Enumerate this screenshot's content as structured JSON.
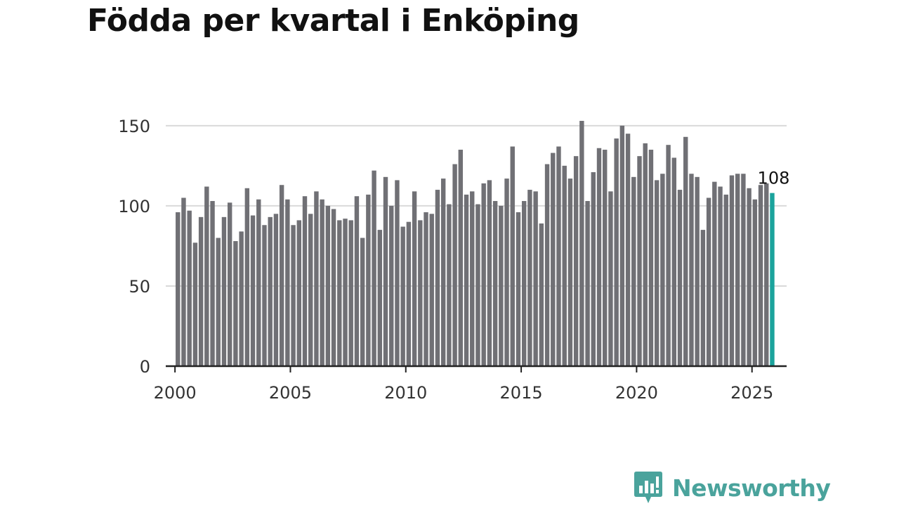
{
  "colors": {
    "bar": "#707075",
    "highlight": "#1ba39c",
    "grid": "#d9d9d9",
    "axis": "#222222",
    "brand": "#4aa39c"
  },
  "brand": {
    "name": "Newsworthy",
    "icon": "newsworthy-logo-icon"
  },
  "chart_data": {
    "type": "bar",
    "title": "Födda per kvartal i Enköping",
    "xlabel": "",
    "ylabel": "",
    "ylim": [
      0,
      160
    ],
    "yticks": [
      0,
      50,
      100,
      150
    ],
    "xlim": [
      1999.6,
      2026.5
    ],
    "xticks": [
      2000,
      2005,
      2010,
      2015,
      2020,
      2025
    ],
    "grid": true,
    "legend": "none",
    "x": [
      2000.125,
      2000.375,
      2000.625,
      2000.875,
      2001.125,
      2001.375,
      2001.625,
      2001.875,
      2002.125,
      2002.375,
      2002.625,
      2002.875,
      2003.125,
      2003.375,
      2003.625,
      2003.875,
      2004.125,
      2004.375,
      2004.625,
      2004.875,
      2005.125,
      2005.375,
      2005.625,
      2005.875,
      2006.125,
      2006.375,
      2006.625,
      2006.875,
      2007.125,
      2007.375,
      2007.625,
      2007.875,
      2008.125,
      2008.375,
      2008.625,
      2008.875,
      2009.125,
      2009.375,
      2009.625,
      2009.875,
      2010.125,
      2010.375,
      2010.625,
      2010.875,
      2011.125,
      2011.375,
      2011.625,
      2011.875,
      2012.125,
      2012.375,
      2012.625,
      2012.875,
      2013.125,
      2013.375,
      2013.625,
      2013.875,
      2014.125,
      2014.375,
      2014.625,
      2014.875,
      2015.125,
      2015.375,
      2015.625,
      2015.875,
      2016.125,
      2016.375,
      2016.625,
      2016.875,
      2017.125,
      2017.375,
      2017.625,
      2017.875,
      2018.125,
      2018.375,
      2018.625,
      2018.875,
      2019.125,
      2019.375,
      2019.625,
      2019.875,
      2020.125,
      2020.375,
      2020.625,
      2020.875,
      2021.125,
      2021.375,
      2021.625,
      2021.875,
      2022.125,
      2022.375,
      2022.625,
      2022.875,
      2023.125,
      2023.375,
      2023.625,
      2023.875,
      2024.125,
      2024.375,
      2024.625,
      2024.875,
      2025.125,
      2025.375,
      2025.625,
      2025.875
    ],
    "values": [
      96,
      105,
      97,
      77,
      93,
      112,
      103,
      80,
      93,
      102,
      78,
      84,
      111,
      94,
      104,
      88,
      93,
      95,
      113,
      104,
      88,
      91,
      106,
      95,
      109,
      104,
      100,
      98,
      91,
      92,
      91,
      106,
      80,
      107,
      122,
      85,
      118,
      100,
      116,
      87,
      90,
      109,
      91,
      96,
      95,
      110,
      117,
      101,
      126,
      135,
      107,
      109,
      101,
      114,
      116,
      103,
      100,
      117,
      137,
      96,
      103,
      110,
      109,
      89,
      126,
      133,
      137,
      125,
      117,
      131,
      153,
      103,
      121,
      136,
      135,
      109,
      142,
      150,
      145,
      118,
      131,
      139,
      135,
      116,
      120,
      138,
      130,
      110,
      143,
      120,
      118,
      85,
      105,
      115,
      112,
      107,
      119,
      120,
      120,
      111,
      104,
      113,
      114,
      108
    ],
    "highlight_index": 103,
    "annotations": [
      {
        "x": 2025.875,
        "text": "108"
      }
    ]
  }
}
